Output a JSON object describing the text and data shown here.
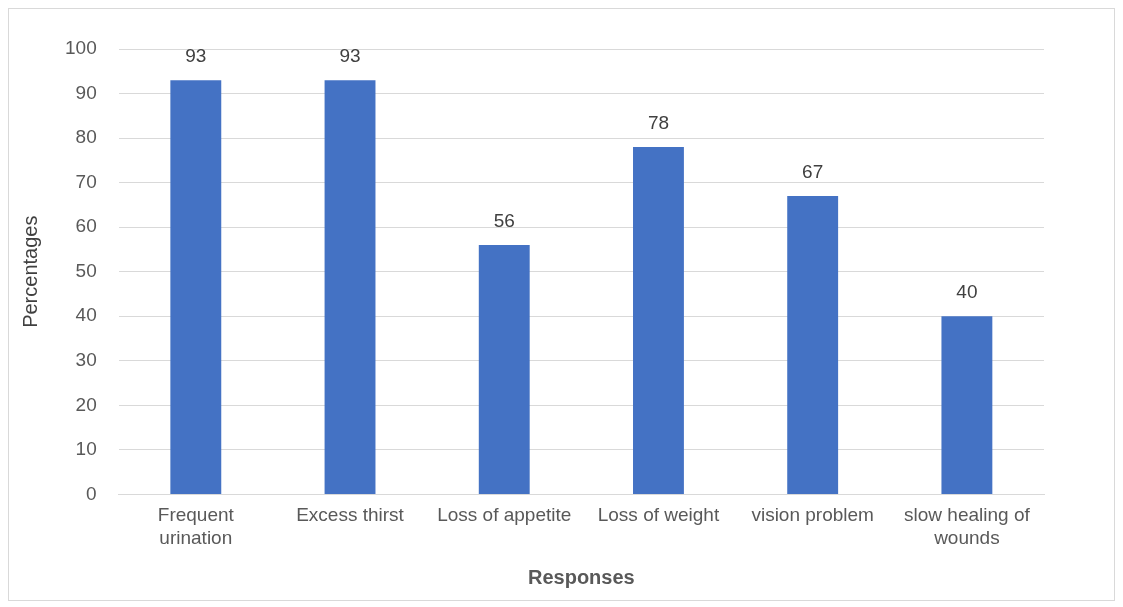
{
  "chart_data": {
    "type": "bar",
    "xlabel": "Responses",
    "ylabel": "Percentages",
    "categories": [
      "Frequent urination",
      "Excess thirst",
      "Loss of appetite",
      "Loss of weight",
      "vision problem",
      "slow healing of wounds"
    ],
    "values": [
      93,
      93,
      56,
      78,
      67,
      40
    ],
    "color": "#4472c4",
    "ylim": [
      0,
      100
    ],
    "yticks": [
      0,
      10,
      20,
      30,
      40,
      50,
      60,
      70,
      80,
      90,
      100
    ],
    "grid": "y",
    "data_labels": true,
    "legend": false
  }
}
